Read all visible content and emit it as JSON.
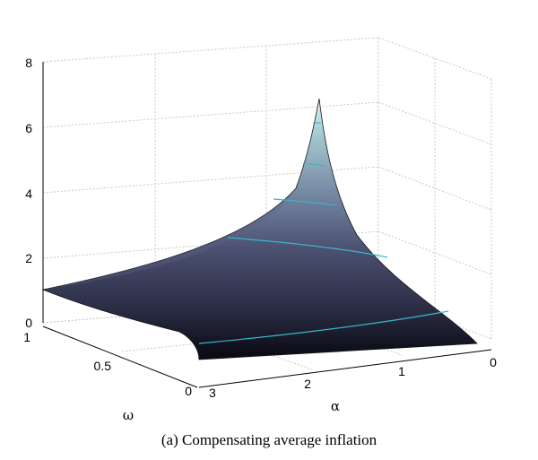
{
  "chart_data": {
    "type": "surface",
    "caption": "(a) Compensating average inflation",
    "xlabel": "α",
    "ylabel": "ω",
    "zlabel": "",
    "x_ticks": [
      "0",
      "1",
      "2",
      "3"
    ],
    "y_ticks": [
      "0",
      "0.5",
      "1"
    ],
    "z_ticks": [
      "0",
      "2",
      "4",
      "6",
      "8"
    ],
    "xlim": [
      0,
      3
    ],
    "ylim": [
      0,
      1
    ],
    "zlim": [
      0,
      8
    ],
    "grid": true,
    "colormap": "bone",
    "contour_color": "#37b7c8",
    "surface_samples": [
      {
        "alpha": 0,
        "omega": 0,
        "z": 0.1
      },
      {
        "alpha": 0,
        "omega": 1,
        "z": 6.9
      },
      {
        "alpha": 3,
        "omega": 0,
        "z": 0.0
      },
      {
        "alpha": 3,
        "omega": 1,
        "z": 1.0
      }
    ],
    "contour_levels": [
      0.3,
      0.6,
      2.3,
      4.2,
      4.8
    ]
  }
}
